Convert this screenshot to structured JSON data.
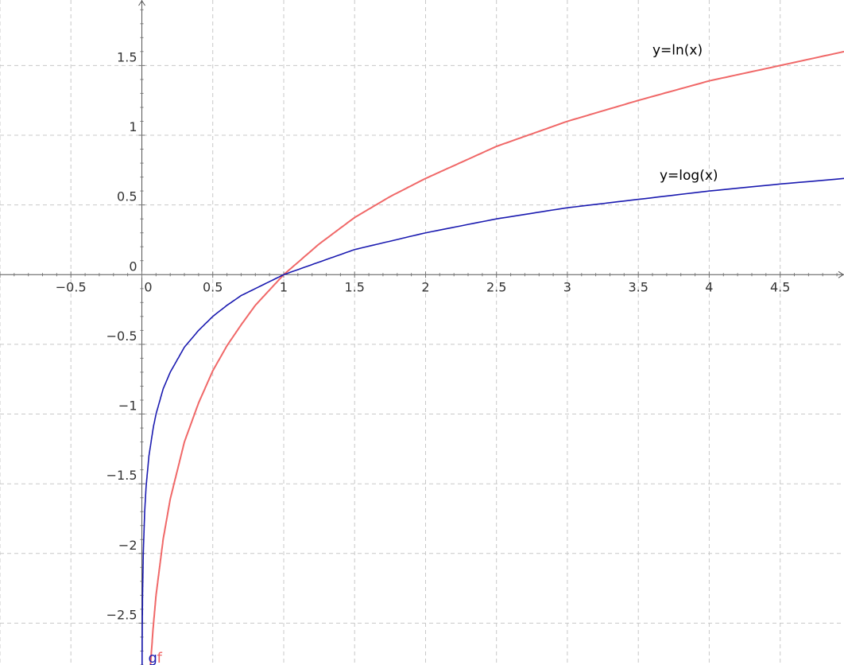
{
  "chart_data": {
    "type": "line",
    "title": "",
    "xlabel": "",
    "ylabel": "",
    "xlim": [
      -1.0,
      4.95
    ],
    "ylim": [
      -2.8,
      1.97
    ],
    "grid": true,
    "legend": "none",
    "x_ticks": [
      {
        "value": -0.5,
        "label": "−0.5"
      },
      {
        "value": 0,
        "label": "0"
      },
      {
        "value": 0.5,
        "label": "0.5"
      },
      {
        "value": 1,
        "label": "1"
      },
      {
        "value": 1.5,
        "label": "1.5"
      },
      {
        "value": 2,
        "label": "2"
      },
      {
        "value": 2.5,
        "label": "2.5"
      },
      {
        "value": 3,
        "label": "3"
      },
      {
        "value": 3.5,
        "label": "3.5"
      },
      {
        "value": 4,
        "label": "4"
      },
      {
        "value": 4.5,
        "label": "4.5"
      }
    ],
    "y_ticks": [
      {
        "value": -2.5,
        "label": "−2.5"
      },
      {
        "value": -2,
        "label": "−2"
      },
      {
        "value": -1.5,
        "label": "−1.5"
      },
      {
        "value": -1,
        "label": "−1"
      },
      {
        "value": -0.5,
        "label": "−0.5"
      },
      {
        "value": 0.5,
        "label": "0.5"
      },
      {
        "value": 1,
        "label": "1"
      },
      {
        "value": 1.5,
        "label": "1.5"
      }
    ],
    "origin_label": "0",
    "series": [
      {
        "name": "y=ln(x)",
        "short_name": "f",
        "color": "#f06868",
        "x": [
          0.06,
          0.08,
          0.1,
          0.15,
          0.2,
          0.3,
          0.4,
          0.5,
          0.6,
          0.7,
          0.8,
          0.9,
          1.0,
          1.25,
          1.5,
          1.75,
          2.0,
          2.5,
          3.0,
          3.5,
          4.0,
          4.5,
          4.95
        ],
        "y": [
          -2.81,
          -2.53,
          -2.3,
          -1.9,
          -1.61,
          -1.2,
          -0.92,
          -0.69,
          -0.51,
          -0.36,
          -0.22,
          -0.11,
          0.0,
          0.22,
          0.41,
          0.56,
          0.69,
          0.92,
          1.1,
          1.25,
          1.39,
          1.5,
          1.6
        ]
      },
      {
        "name": "y=log(x)",
        "short_name": "g",
        "color": "#1a1ab0",
        "x": [
          0.0016,
          0.002,
          0.003,
          0.005,
          0.01,
          0.02,
          0.03,
          0.05,
          0.08,
          0.1,
          0.15,
          0.2,
          0.3,
          0.4,
          0.5,
          0.6,
          0.7,
          0.8,
          0.9,
          1.0,
          1.5,
          2.0,
          2.5,
          3.0,
          3.5,
          4.0,
          4.5,
          4.95
        ],
        "y": [
          -2.8,
          -2.7,
          -2.52,
          -2.3,
          -2.0,
          -1.7,
          -1.52,
          -1.3,
          -1.1,
          -1.0,
          -0.82,
          -0.7,
          -0.52,
          -0.4,
          -0.3,
          -0.22,
          -0.15,
          -0.1,
          -0.05,
          0.0,
          0.18,
          0.3,
          0.4,
          0.48,
          0.54,
          0.6,
          0.65,
          0.69
        ]
      }
    ]
  }
}
